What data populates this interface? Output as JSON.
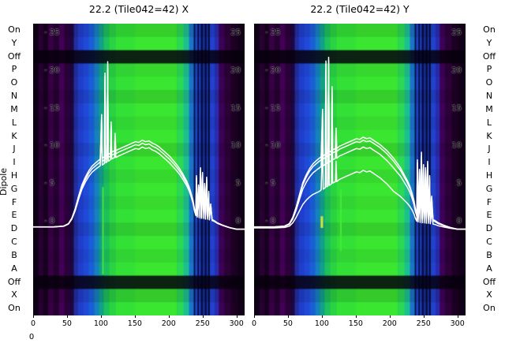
{
  "axes": {
    "dipole_label": "Dipole",
    "stray_tick": "0"
  },
  "chart_data": {
    "type": "heatmap",
    "description": "Two dipole power-vs-frequency heatmaps with white bandpass line overlays",
    "x_range": [
      0,
      312
    ],
    "x_ticks": [
      0,
      50,
      100,
      150,
      200,
      250,
      300
    ],
    "y_ticks": [
      25,
      20,
      15,
      10,
      5,
      0
    ],
    "dipole_rows": [
      {
        "label": "On",
        "dark": 0.1
      },
      {
        "label": "Y",
        "dark": 0.0
      },
      {
        "label": "Off",
        "dark": 0.85
      },
      {
        "label": "P",
        "dark": 0.06
      },
      {
        "label": "O",
        "dark": 0.0
      },
      {
        "label": "N",
        "dark": 0.1
      },
      {
        "label": "M",
        "dark": 0.0
      },
      {
        "label": "L",
        "dark": 0.05
      },
      {
        "label": "K",
        "dark": 0.0
      },
      {
        "label": "J",
        "dark": 0.1
      },
      {
        "label": "I",
        "dark": 0.0
      },
      {
        "label": "H",
        "dark": 0.06
      },
      {
        "label": "G",
        "dark": 0.0
      },
      {
        "label": "F",
        "dark": 0.05
      },
      {
        "label": "E",
        "dark": 0.0
      },
      {
        "label": "D",
        "dark": 0.1
      },
      {
        "label": "C",
        "dark": 0.0
      },
      {
        "label": "B",
        "dark": 0.06
      },
      {
        "label": "A",
        "dark": 0.0
      },
      {
        "label": "Off",
        "dark": 0.85
      },
      {
        "label": "X",
        "dark": 0.12
      },
      {
        "label": "On",
        "dark": 0.0
      }
    ],
    "bands": [
      {
        "x0": 0,
        "x1": 8,
        "color": "#0e0016"
      },
      {
        "x0": 8,
        "x1": 15,
        "color": "#2a0134"
      },
      {
        "x0": 15,
        "x1": 22,
        "color": "#180120"
      },
      {
        "x0": 22,
        "x1": 30,
        "color": "#380146"
      },
      {
        "x0": 30,
        "x1": 38,
        "color": "#240130"
      },
      {
        "x0": 38,
        "x1": 46,
        "color": "#420154"
      },
      {
        "x0": 46,
        "x1": 54,
        "color": "#2c013a"
      },
      {
        "x0": 54,
        "x1": 60,
        "color": "#1c0742"
      },
      {
        "x0": 60,
        "x1": 66,
        "color": "#232e9e"
      },
      {
        "x0": 66,
        "x1": 74,
        "color": "#1f3ecc"
      },
      {
        "x0": 74,
        "x1": 82,
        "color": "#2149d8"
      },
      {
        "x0": 82,
        "x1": 90,
        "color": "#1a5ed8"
      },
      {
        "x0": 90,
        "x1": 97,
        "color": "#1780c0"
      },
      {
        "x0": 97,
        "x1": 104,
        "color": "#12a08a"
      },
      {
        "x0": 104,
        "x1": 112,
        "color": "#1cc05c"
      },
      {
        "x0": 112,
        "x1": 122,
        "color": "#2ad342"
      },
      {
        "x0": 122,
        "x1": 150,
        "color": "#33e136"
      },
      {
        "x0": 150,
        "x1": 212,
        "color": "#3ae62f"
      },
      {
        "x0": 212,
        "x1": 222,
        "color": "#2bd955"
      },
      {
        "x0": 222,
        "x1": 230,
        "color": "#1cc090"
      },
      {
        "x0": 230,
        "x1": 238,
        "color": "#1b74cc"
      },
      {
        "x0": 238,
        "x1": 246,
        "color": "#1e46d0"
      },
      {
        "x0": 246,
        "x1": 260,
        "color": "#162e96"
      },
      {
        "x0": 260,
        "x1": 268,
        "color": "#2042cc"
      },
      {
        "x0": 268,
        "x1": 274,
        "color": "#2b2bb0"
      },
      {
        "x0": 274,
        "x1": 282,
        "color": "#3d0156"
      },
      {
        "x0": 282,
        "x1": 292,
        "color": "#2c0138"
      },
      {
        "x0": 292,
        "x1": 302,
        "color": "#1c0124"
      },
      {
        "x0": 302,
        "x1": 312,
        "color": "#120018"
      }
    ],
    "stripes": {
      "color": "rgba(3,0,24,0.82)",
      "x_positions": [
        238,
        243.5,
        249,
        254.5,
        259.5
      ]
    },
    "panels": [
      {
        "title": "22.2 (Tile042=42) X",
        "line_offsets": [
          0.4,
          -0.5,
          0
        ],
        "vmarks": [
          {
            "x": 103,
            "y0": 0.56,
            "y1": 0.86,
            "color": "#49e839",
            "w": 2
          }
        ],
        "base_points": [
          [
            0,
            -0.7
          ],
          [
            30,
            -0.7
          ],
          [
            45,
            -0.6
          ],
          [
            52,
            -0.3
          ],
          [
            57,
            0.4
          ],
          [
            62,
            1.6
          ],
          [
            67,
            3.2
          ],
          [
            72,
            4.6
          ],
          [
            77,
            5.6
          ],
          [
            82,
            6.4
          ],
          [
            87,
            7.0
          ],
          [
            92,
            7.4
          ],
          [
            96,
            7.7
          ],
          [
            99,
            7.9
          ],
          [
            101,
            13.8
          ],
          [
            102,
            8.0
          ],
          [
            105,
            8.2
          ],
          [
            106,
            19.3
          ],
          [
            107,
            8.3
          ],
          [
            109,
            8.4
          ],
          [
            110,
            20.8
          ],
          [
            111,
            8.5
          ],
          [
            114,
            8.7
          ],
          [
            115,
            12.8
          ],
          [
            116,
            8.8
          ],
          [
            120,
            9.0
          ],
          [
            121,
            11.3
          ],
          [
            122,
            9.0
          ],
          [
            126,
            9.2
          ],
          [
            131,
            9.4
          ],
          [
            136,
            9.6
          ],
          [
            141,
            9.8
          ],
          [
            146,
            10.0
          ],
          [
            151,
            10.2
          ],
          [
            156,
            10.1
          ],
          [
            161,
            10.4
          ],
          [
            166,
            10.2
          ],
          [
            171,
            10.3
          ],
          [
            176,
            10.0
          ],
          [
            181,
            9.8
          ],
          [
            186,
            9.5
          ],
          [
            191,
            9.1
          ],
          [
            196,
            8.7
          ],
          [
            201,
            8.3
          ],
          [
            206,
            7.8
          ],
          [
            211,
            7.3
          ],
          [
            216,
            6.7
          ],
          [
            221,
            6.0
          ],
          [
            226,
            5.2
          ],
          [
            230,
            4.4
          ],
          [
            233,
            3.6
          ],
          [
            236,
            2.6
          ],
          [
            238,
            1.6
          ],
          [
            240,
            0.9
          ],
          [
            241,
            5.8
          ],
          [
            242,
            0.7
          ],
          [
            244,
            4.6
          ],
          [
            245,
            0.6
          ],
          [
            247,
            6.8
          ],
          [
            248,
            0.5
          ],
          [
            250,
            6.2
          ],
          [
            251,
            0.5
          ],
          [
            253,
            4.8
          ],
          [
            254,
            0.4
          ],
          [
            256,
            5.6
          ],
          [
            257,
            0.4
          ],
          [
            259,
            3.8
          ],
          [
            260,
            0.3
          ],
          [
            262,
            2.2
          ],
          [
            264,
            0.2
          ],
          [
            267,
            0.1
          ],
          [
            272,
            -0.2
          ],
          [
            280,
            -0.5
          ],
          [
            290,
            -0.8
          ],
          [
            300,
            -1.0
          ],
          [
            312,
            -1.0
          ]
        ]
      },
      {
        "title": "22.2 (Tile042=42) Y",
        "line_offsets": [
          -4,
          -0.9,
          0.4,
          0
        ],
        "vmarks": [
          {
            "x": 128,
            "y0": 0.57,
            "y1": 0.78,
            "color": "#49e839",
            "w": 2
          },
          {
            "x": 100,
            "y0": 0.66,
            "y1": 0.7,
            "color": "#d8e832",
            "w": 3
          }
        ],
        "base_points": [
          [
            0,
            -0.7
          ],
          [
            30,
            -0.7
          ],
          [
            45,
            -0.6
          ],
          [
            52,
            -0.3
          ],
          [
            57,
            0.5
          ],
          [
            62,
            1.8
          ],
          [
            67,
            3.4
          ],
          [
            72,
            4.9
          ],
          [
            77,
            5.9
          ],
          [
            82,
            6.7
          ],
          [
            87,
            7.3
          ],
          [
            92,
            7.7
          ],
          [
            96,
            8.0
          ],
          [
            99,
            8.2
          ],
          [
            101,
            14.5
          ],
          [
            102,
            8.3
          ],
          [
            105,
            8.5
          ],
          [
            106,
            20.9
          ],
          [
            107,
            8.6
          ],
          [
            109,
            8.7
          ],
          [
            110,
            21.4
          ],
          [
            111,
            8.8
          ],
          [
            114,
            9.0
          ],
          [
            115,
            17.5
          ],
          [
            116,
            9.1
          ],
          [
            120,
            9.3
          ],
          [
            121,
            12.0
          ],
          [
            122,
            9.3
          ],
          [
            126,
            9.6
          ],
          [
            131,
            9.8
          ],
          [
            136,
            10.0
          ],
          [
            141,
            10.2
          ],
          [
            146,
            10.4
          ],
          [
            151,
            10.6
          ],
          [
            156,
            10.5
          ],
          [
            161,
            10.8
          ],
          [
            166,
            10.6
          ],
          [
            171,
            10.7
          ],
          [
            176,
            10.4
          ],
          [
            181,
            10.1
          ],
          [
            186,
            9.8
          ],
          [
            191,
            9.4
          ],
          [
            196,
            9.0
          ],
          [
            201,
            8.5
          ],
          [
            206,
            8.0
          ],
          [
            211,
            7.4
          ],
          [
            216,
            6.8
          ],
          [
            221,
            6.0
          ],
          [
            226,
            5.2
          ],
          [
            230,
            4.4
          ],
          [
            233,
            3.6
          ],
          [
            236,
            2.6
          ],
          [
            238,
            1.6
          ],
          [
            240,
            0.9
          ],
          [
            241,
            7.8
          ],
          [
            242,
            0.7
          ],
          [
            244,
            6.6
          ],
          [
            245,
            0.6
          ],
          [
            247,
            8.8
          ],
          [
            248,
            0.5
          ],
          [
            250,
            7.2
          ],
          [
            251,
            0.5
          ],
          [
            253,
            6.8
          ],
          [
            254,
            0.4
          ],
          [
            256,
            7.6
          ],
          [
            257,
            0.4
          ],
          [
            259,
            5.8
          ],
          [
            260,
            0.3
          ],
          [
            262,
            3.2
          ],
          [
            264,
            0.2
          ],
          [
            267,
            0.1
          ],
          [
            272,
            -0.2
          ],
          [
            280,
            -0.5
          ],
          [
            290,
            -0.8
          ],
          [
            300,
            -1.0
          ],
          [
            312,
            -1.0
          ]
        ]
      }
    ]
  }
}
